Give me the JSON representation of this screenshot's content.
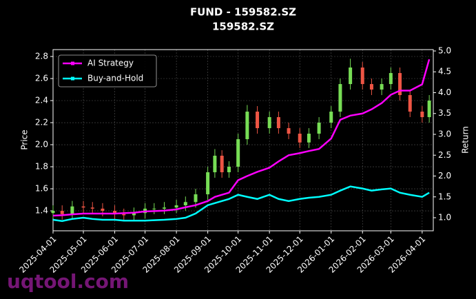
{
  "chart_data": {
    "type": "candlestick",
    "title": "FUND - 159582.SZ",
    "subtitle": "159582.SZ",
    "y_label": "Price",
    "y2_label": "Return",
    "watermark": "uqtool.com",
    "x": [
      "2025-04-01",
      "2025-04-10",
      "2025-04-20",
      "2025-05-01",
      "2025-05-10",
      "2025-05-20",
      "2025-06-01",
      "2025-06-10",
      "2025-06-20",
      "2025-07-01",
      "2025-07-10",
      "2025-07-20",
      "2025-08-01",
      "2025-08-10",
      "2025-08-20",
      "2025-09-01",
      "2025-09-08",
      "2025-09-15",
      "2025-09-22",
      "2025-10-01",
      "2025-10-10",
      "2025-10-20",
      "2025-11-01",
      "2025-11-10",
      "2025-11-20",
      "2025-12-01",
      "2025-12-10",
      "2025-12-20",
      "2026-01-01",
      "2026-01-10",
      "2026-01-20",
      "2026-02-01",
      "2026-02-10",
      "2026-02-20",
      "2026-03-01",
      "2026-03-10",
      "2026-03-20",
      "2026-04-01",
      "2026-04-08"
    ],
    "candles": {
      "up_color": "#77dd55",
      "down_color": "#ee5544",
      "open": [
        1.38,
        1.4,
        1.37,
        1.44,
        1.43,
        1.42,
        1.4,
        1.37,
        1.36,
        1.38,
        1.42,
        1.42,
        1.43,
        1.45,
        1.48,
        1.55,
        1.75,
        1.9,
        1.75,
        1.8,
        2.05,
        2.3,
        2.15,
        2.25,
        2.15,
        2.1,
        2.02,
        2.1,
        2.2,
        2.3,
        2.55,
        2.7,
        2.55,
        2.5,
        2.55,
        2.65,
        2.45,
        2.3,
        2.25
      ],
      "high": [
        1.45,
        1.45,
        1.49,
        1.49,
        1.48,
        1.47,
        1.45,
        1.42,
        1.43,
        1.47,
        1.47,
        1.48,
        1.5,
        1.53,
        1.6,
        1.8,
        1.96,
        1.95,
        1.85,
        2.1,
        2.36,
        2.35,
        2.3,
        2.3,
        2.2,
        2.15,
        2.15,
        2.25,
        2.35,
        2.6,
        2.78,
        2.75,
        2.6,
        2.6,
        2.7,
        2.7,
        2.5,
        2.35,
        2.45
      ],
      "low": [
        1.33,
        1.32,
        1.32,
        1.38,
        1.37,
        1.35,
        1.32,
        1.31,
        1.31,
        1.33,
        1.37,
        1.37,
        1.38,
        1.4,
        1.43,
        1.5,
        1.7,
        1.7,
        1.7,
        1.75,
        2.0,
        2.1,
        2.1,
        2.1,
        2.05,
        1.97,
        1.97,
        2.05,
        2.15,
        2.25,
        2.5,
        2.5,
        2.45,
        2.45,
        2.5,
        2.4,
        2.25,
        2.2,
        2.2
      ],
      "close": [
        1.4,
        1.37,
        1.44,
        1.43,
        1.42,
        1.4,
        1.37,
        1.36,
        1.38,
        1.42,
        1.42,
        1.43,
        1.45,
        1.48,
        1.55,
        1.75,
        1.9,
        1.75,
        1.8,
        2.05,
        2.3,
        2.15,
        2.25,
        2.15,
        2.1,
        2.02,
        2.1,
        2.2,
        2.3,
        2.55,
        2.7,
        2.55,
        2.5,
        2.55,
        2.65,
        2.45,
        2.3,
        2.25,
        2.4
      ]
    },
    "series": [
      {
        "name": "AI Strategy",
        "color": "#ff00ff",
        "axis": "y2",
        "values": [
          1.05,
          1.06,
          1.08,
          1.1,
          1.1,
          1.1,
          1.1,
          1.11,
          1.12,
          1.15,
          1.16,
          1.17,
          1.2,
          1.25,
          1.3,
          1.4,
          1.5,
          1.55,
          1.6,
          1.9,
          2.0,
          2.1,
          2.2,
          2.35,
          2.5,
          2.55,
          2.6,
          2.65,
          2.9,
          3.35,
          3.45,
          3.5,
          3.6,
          3.75,
          3.95,
          4.05,
          4.05,
          4.2,
          4.8
        ]
      },
      {
        "name": "Buy-and-Hold",
        "color": "#00ffff",
        "axis": "y2",
        "values": [
          0.95,
          0.92,
          0.97,
          1.0,
          0.97,
          0.95,
          0.95,
          0.93,
          0.93,
          0.93,
          0.94,
          0.95,
          0.97,
          1.0,
          1.1,
          1.3,
          1.35,
          1.4,
          1.45,
          1.55,
          1.5,
          1.45,
          1.55,
          1.45,
          1.4,
          1.45,
          1.48,
          1.5,
          1.55,
          1.65,
          1.75,
          1.7,
          1.65,
          1.68,
          1.7,
          1.6,
          1.55,
          1.5,
          1.6
        ]
      }
    ],
    "xlim": [
      "2025-04-01",
      "2026-04-12"
    ],
    "xticks": [
      "2025-04-01",
      "2025-05-01",
      "2025-06-01",
      "2025-07-01",
      "2025-08-01",
      "2025-09-01",
      "2025-10-01",
      "2025-11-01",
      "2025-12-01",
      "2026-01-01",
      "2026-02-01",
      "2026-03-01",
      "2026-04-01"
    ],
    "ylim": [
      1.219,
      2.8625
    ],
    "yticks": [
      1.4,
      1.6,
      1.8,
      {
        "value": 2.0,
        "label": "2.0"
      },
      2.2,
      2.4,
      2.6,
      2.8
    ],
    "y2lim": [
      0.686,
      5.033
    ],
    "y2ticks": [
      {
        "value": 1.0,
        "label": "1.0"
      },
      1.5,
      {
        "value": 2.0,
        "label": "2.0"
      },
      2.5,
      {
        "value": 3.0,
        "label": "3.0"
      },
      3.5,
      {
        "value": 4.0,
        "label": "4.0"
      },
      4.5,
      {
        "value": 5.0,
        "label": "5.0"
      }
    ],
    "grid": true,
    "legend": "upper left"
  }
}
